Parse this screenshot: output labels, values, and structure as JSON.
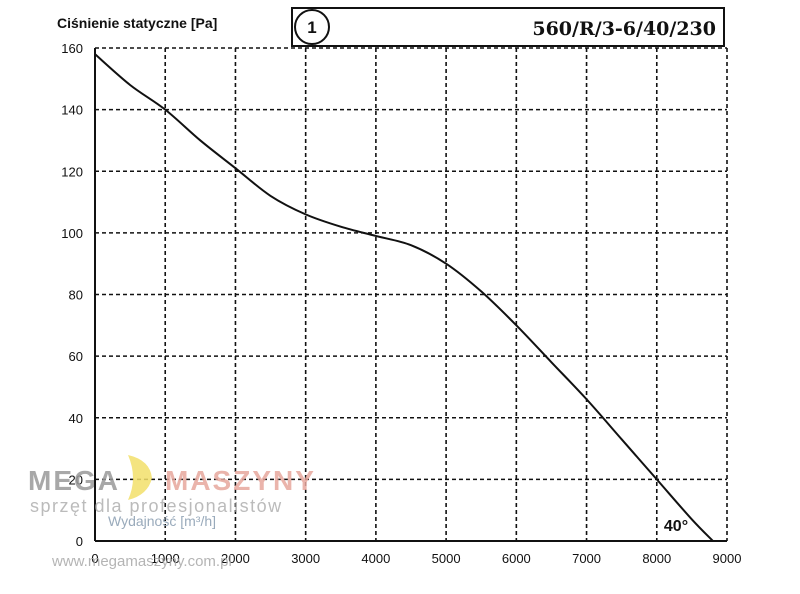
{
  "chart_data": {
    "type": "line",
    "title": "560/R/3-6/40/230",
    "curve_number": "1",
    "ylabel": "Ciśnienie statyczne [Pa]",
    "xlabel": "Wydajność [m³/h]",
    "annotation": "40°",
    "xlim": [
      0,
      9000
    ],
    "ylim": [
      0,
      160
    ],
    "x_ticks": [
      "0",
      "1000",
      "2000",
      "3000",
      "4000",
      "5000",
      "6000",
      "7000",
      "8000",
      "9000"
    ],
    "y_ticks": [
      "0",
      "20",
      "40",
      "60",
      "80",
      "100",
      "120",
      "140",
      "160"
    ],
    "grid": true,
    "grid_style": "dashed",
    "series": [
      {
        "x": [
          0,
          500,
          1000,
          1500,
          2000,
          2500,
          3000,
          3500,
          4000,
          4500,
          5000,
          5500,
          6000,
          6500,
          7000,
          7500,
          8000,
          8500,
          8800
        ],
        "y": [
          158,
          148,
          140,
          130,
          121,
          112,
          106,
          102,
          99,
          96,
          90,
          81,
          70,
          58,
          46,
          33,
          20,
          7,
          0
        ],
        "color": "#111111"
      }
    ]
  },
  "watermark": {
    "brand_left": "MEGA",
    "brand_right": "MASZYNY",
    "tagline": "sprzęt dla profesjonalistów",
    "url": "www.megamaszyny.com.pl",
    "color_left": "#9a9a9a",
    "color_right": "#e7a79d",
    "logo_color": "#f3e06a"
  }
}
